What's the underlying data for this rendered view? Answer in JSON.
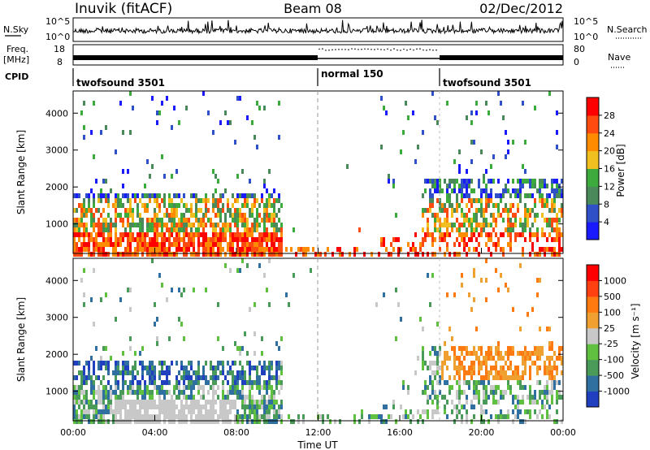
{
  "header": {
    "station": "Inuvik (fitACF)",
    "beam": "Beam 08",
    "date": "02/Dec/2012"
  },
  "chart_data": [
    {
      "type": "line",
      "name": "noise-panel",
      "left_label": "N.Sky",
      "right_label": "N.Search",
      "left_ticks": [
        "10^5",
        "10^0"
      ],
      "right_ticks": [
        "10^5",
        "10^0"
      ],
      "note": "noise levels shown as dense spiky trace across 00:00-24:00 UT"
    },
    {
      "type": "line",
      "name": "frequency-panel",
      "left_label": "Freq.",
      "left_unit": "[MHz]",
      "right_label": "Nave",
      "left_ticks": [
        "18",
        "8"
      ],
      "right_ticks": [
        "80",
        "0"
      ]
    },
    {
      "type": "table",
      "name": "cpid-panel",
      "label": "CPID",
      "segments": [
        {
          "name": "twofsound 3501",
          "start": 0,
          "end": 12
        },
        {
          "name": "normal 150",
          "start": 12,
          "end": 18
        },
        {
          "name": "twofsound 3501",
          "start": 18,
          "end": 24
        }
      ]
    },
    {
      "type": "heatmap",
      "name": "power-panel",
      "ylabel": "Slant Range [km]",
      "yticks": [
        1000,
        2000,
        3000,
        4000
      ],
      "ylim": [
        200,
        4600
      ],
      "colorbar_label": "Power [dB]",
      "colorbar_ticks": [
        "4",
        "8",
        "12",
        "16",
        "20",
        "24",
        "28"
      ],
      "colorbar_colors": [
        "#1a1aff",
        "#3050c8",
        "#4a8a5a",
        "#3caa3c",
        "#f0c020",
        "#ff8c00",
        "#ff4a10",
        "#ff0000"
      ]
    },
    {
      "type": "heatmap",
      "name": "velocity-panel",
      "ylabel": "Slant Range [km]",
      "yticks": [
        1000,
        2000,
        3000,
        4000
      ],
      "ylim": [
        200,
        4600
      ],
      "colorbar_label": "Velocity [m s⁻¹]",
      "colorbar_ticks": [
        "1000",
        "500",
        "100",
        "25",
        "-25",
        "-100",
        "-500",
        "-1000"
      ],
      "colorbar_colors": [
        "#2040c0",
        "#3070a0",
        "#4a9a5a",
        "#60c040",
        "#c8c8c8",
        "#f0a030",
        "#ff7a10",
        "#ff4010",
        "#ff0000"
      ],
      "xlabel": "Time UT",
      "xticks": [
        "00:00",
        "04:00",
        "08:00",
        "12:00",
        "16:00",
        "20:00",
        "00:00"
      ]
    }
  ]
}
